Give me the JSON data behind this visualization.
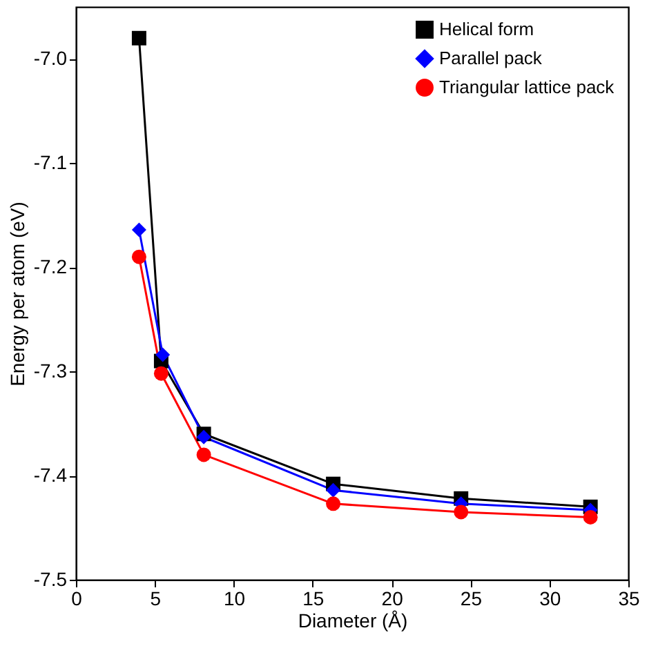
{
  "chart_data": {
    "type": "line",
    "xlabel": "Diameter (Å)",
    "ylabel": "Energy per atom (eV)",
    "xlim": [
      0,
      35
    ],
    "xticks": [
      0,
      5,
      10,
      15,
      20,
      25,
      30,
      35
    ],
    "ylim": [
      -7.5,
      -6.95
    ],
    "yticks": [
      {
        "value": -7.5,
        "label": "-7.5"
      },
      {
        "value": -7.4,
        "label": "-7.4"
      },
      {
        "value": -7.3,
        "label": "-7.3"
      },
      {
        "value": -7.2,
        "label": "-7.2"
      },
      {
        "value": -7.1,
        "label": "-7.1"
      },
      {
        "value": -7.0,
        "label": "-7.0"
      }
    ],
    "grid": false,
    "legend": "top right",
    "series": [
      {
        "name": "Helical form",
        "color": "#000000",
        "marker": "square",
        "x": [
          4.0,
          5.4,
          8.1,
          16.3,
          24.4,
          32.6
        ],
        "values": [
          -6.98,
          -7.29,
          -7.36,
          -7.408,
          -7.422,
          -7.43
        ]
      },
      {
        "name": "Parallel pack",
        "color": "#0000ff",
        "marker": "diamond",
        "x": [
          4.0,
          5.5,
          8.1,
          16.3,
          24.4,
          32.6
        ],
        "values": [
          -7.164,
          -7.284,
          -7.363,
          -7.414,
          -7.427,
          -7.433
        ]
      },
      {
        "name": "Triangular lattice pack",
        "color": "#ff0000",
        "marker": "circle",
        "x": [
          4.0,
          5.4,
          8.1,
          16.3,
          24.4,
          32.6
        ],
        "values": [
          -7.19,
          -7.302,
          -7.38,
          -7.427,
          -7.435,
          -7.44
        ]
      }
    ]
  }
}
